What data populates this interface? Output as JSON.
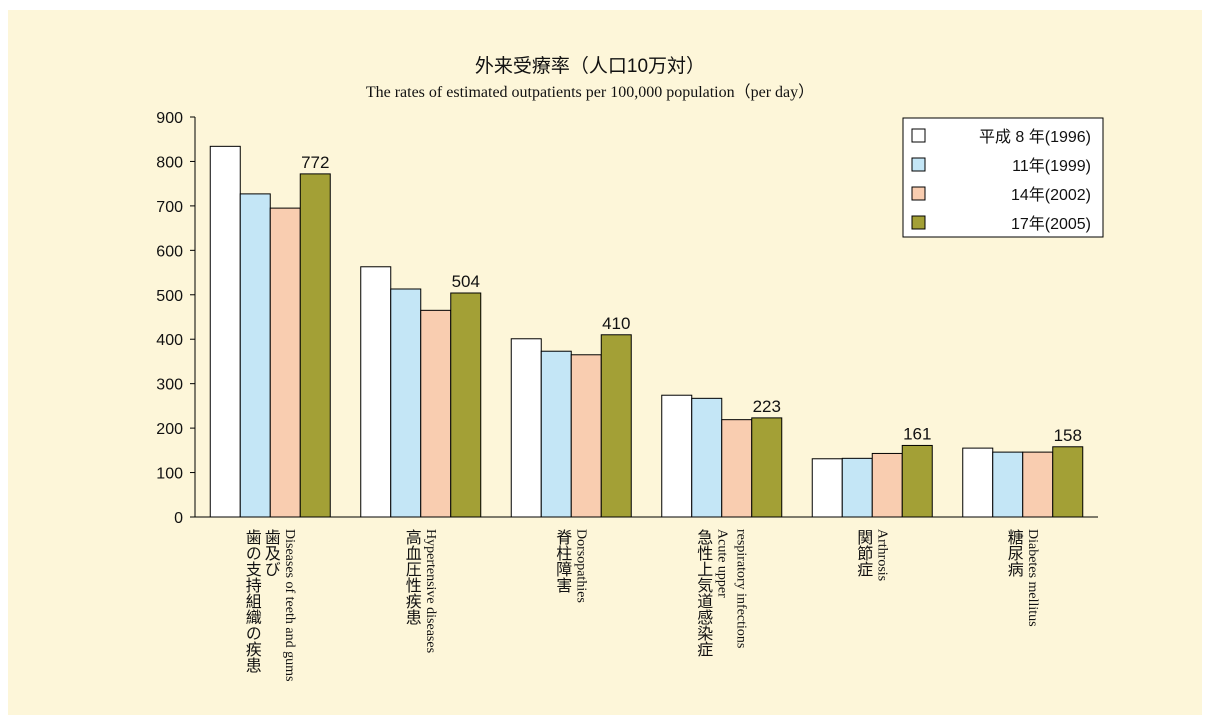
{
  "chart_data": {
    "type": "bar",
    "title": "外来受療率（人口10万対）",
    "subtitle": "The rates of estimated outpatients per 100,000 population（per day）",
    "categories": [
      {
        "ja": [
          "歯及び",
          "歯の支持組織の疾患"
        ],
        "en": [
          "Diseases of teeth and gums"
        ]
      },
      {
        "ja": [
          "高血圧性疾患"
        ],
        "en": [
          "Hypertensive diseases"
        ]
      },
      {
        "ja": [
          "脊柱障害"
        ],
        "en": [
          "Dorsopathies"
        ]
      },
      {
        "ja": [
          "急性上気道感染症"
        ],
        "en": [
          "Acute upper",
          "respiratory infections"
        ]
      },
      {
        "ja": [
          "関節症"
        ],
        "en": [
          "Arthrosis"
        ]
      },
      {
        "ja": [
          "糖尿病"
        ],
        "en": [
          "Diabetes mellitus"
        ]
      }
    ],
    "series": [
      {
        "name": "平成 8 年(1996)",
        "color": "#ffffff",
        "values": [
          834,
          563,
          401,
          274,
          131,
          155
        ]
      },
      {
        "name": "11年(1999)",
        "color": "#c4e6f6",
        "values": [
          727,
          513,
          373,
          267,
          132,
          146
        ]
      },
      {
        "name": "14年(2002)",
        "color": "#f9cdb0",
        "values": [
          695,
          465,
          365,
          219,
          143,
          146
        ]
      },
      {
        "name": "17年(2005)",
        "color": "#a3a036",
        "values": [
          772,
          504,
          410,
          223,
          161,
          158
        ],
        "data_labels": true
      }
    ],
    "ylim": [
      0,
      900
    ],
    "yticks": [
      0,
      100,
      200,
      300,
      400,
      500,
      600,
      700,
      800,
      900
    ],
    "grid": false,
    "legend": "upper right"
  }
}
